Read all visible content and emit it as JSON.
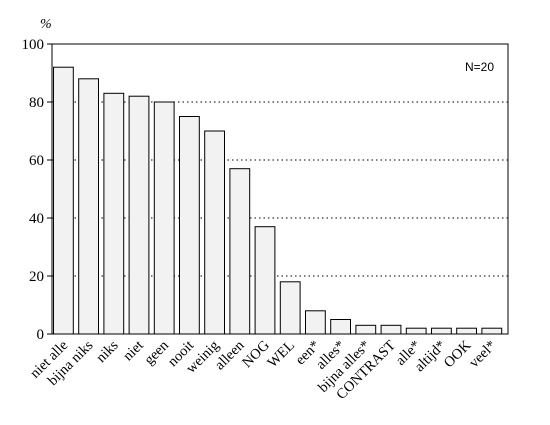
{
  "chart_data": {
    "type": "bar",
    "unit_label": "%",
    "annotation": "N=20",
    "ylim": [
      0,
      100
    ],
    "yticks": [
      0,
      20,
      40,
      60,
      80,
      100
    ],
    "grid": "horizontal dotted",
    "categories": [
      "niet alle",
      "bijna niks",
      "niks",
      "niet",
      "geen",
      "nooit",
      "weinig",
      "alleen",
      "NOG",
      "WEL",
      "een*",
      "alles*",
      "bijna alles*",
      "CONTRAST",
      "alle*",
      "altijd*",
      "OOK",
      "veel*"
    ],
    "values": [
      92,
      88,
      83,
      82,
      80,
      75,
      70,
      57,
      37,
      18,
      8,
      5,
      3,
      3,
      2,
      2,
      2,
      2
    ],
    "bar_fill": "#f2f2f2"
  }
}
